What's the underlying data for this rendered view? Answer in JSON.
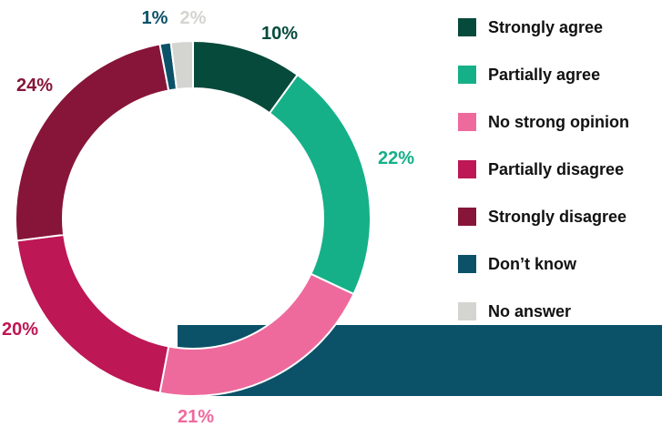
{
  "chart_data": {
    "type": "pie",
    "donut": true,
    "title": "",
    "categories": [
      "Strongly agree",
      "Partially agree",
      "No strong opinion",
      "Partially disagree",
      "Strongly disagree",
      "Don’t know",
      "No answer"
    ],
    "values": [
      10,
      22,
      21,
      20,
      24,
      1,
      2
    ],
    "labels": [
      "10%",
      "22%",
      "21%",
      "20%",
      "24%",
      "1%",
      "2%"
    ],
    "colors": [
      "#064a3b",
      "#15b088",
      "#ee6a9d",
      "#bd1755",
      "#871539",
      "#0b5269",
      "#d4d4d0"
    ],
    "label_colors": [
      "#064a3b",
      "#15b088",
      "#ee6a9d",
      "#bd1755",
      "#871539",
      "#0b5269",
      "#d4d4d0"
    ],
    "legend_position": "right"
  },
  "background_bar_color": "#0b5269"
}
